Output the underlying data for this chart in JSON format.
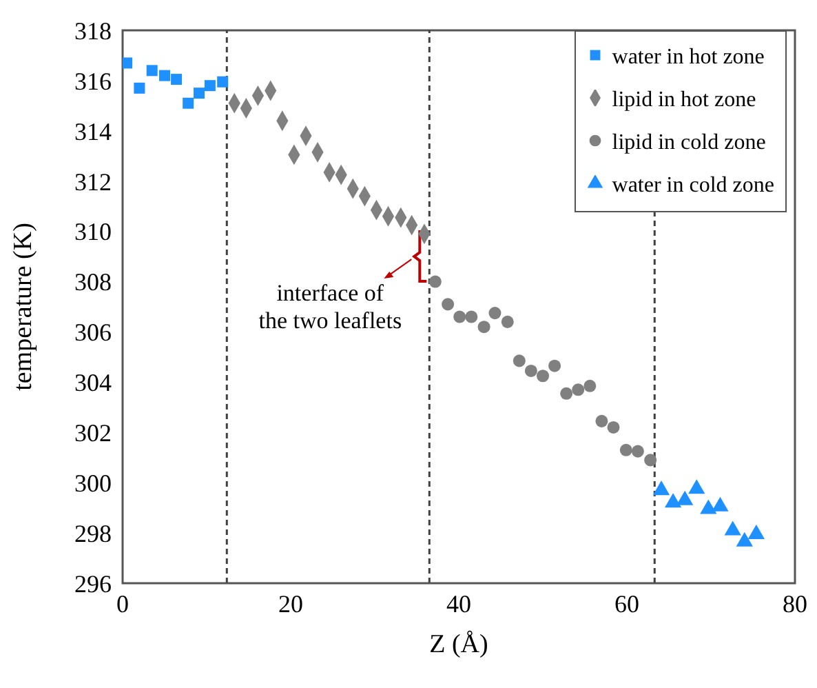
{
  "chart_data": {
    "type": "scatter",
    "xlabel": "Z (Å)",
    "ylabel": "temperature (K)",
    "xlim": [
      0,
      80
    ],
    "xticks": [
      0,
      20,
      40,
      60,
      80
    ],
    "ylim": [
      296,
      318
    ],
    "yticks": [
      296,
      298,
      300,
      302,
      304,
      306,
      308,
      310,
      312,
      314,
      316,
      318
    ],
    "grid": false,
    "legend": "top right",
    "series": [
      {
        "name": "water in hot zone",
        "color": "#1e90ff",
        "marker": "square",
        "x": [
          0.5,
          2,
          3.5,
          5,
          6.4,
          7.8,
          9.1,
          10.4,
          11.9
        ],
        "values": [
          316.7,
          315.7,
          316.4,
          316.2,
          316.05,
          315.1,
          315.5,
          315.8,
          315.95
        ]
      },
      {
        "name": "lipid in hot zone",
        "color": "#808080",
        "marker": "diamond",
        "x": [
          13.3,
          14.7,
          16.1,
          17.6,
          19.0,
          20.4,
          21.8,
          23.2,
          24.6,
          26.0,
          27.4,
          28.8,
          30.2,
          31.6,
          33.1,
          34.4,
          35.9
        ],
        "values": [
          315.1,
          314.9,
          315.4,
          315.6,
          314.4,
          313.05,
          313.8,
          313.15,
          312.35,
          312.25,
          311.7,
          311.4,
          310.85,
          310.6,
          310.55,
          310.25,
          309.9
        ]
      },
      {
        "name": "lipid in cold zone",
        "color": "#808080",
        "marker": "circle",
        "x": [
          37.2,
          38.7,
          40.1,
          41.5,
          43.0,
          44.3,
          45.8,
          47.2,
          48.6,
          50.0,
          51.4,
          52.8,
          54.2,
          55.6,
          57.0,
          58.4,
          59.9,
          61.3,
          62.8
        ],
        "values": [
          308.0,
          307.1,
          306.6,
          306.6,
          306.2,
          306.75,
          306.4,
          304.85,
          304.45,
          304.25,
          304.65,
          303.55,
          303.7,
          303.85,
          302.45,
          302.2,
          301.3,
          301.25,
          300.9
        ]
      },
      {
        "name": "water in cold zone",
        "color": "#1e90ff",
        "marker": "triangle",
        "x": [
          64.1,
          65.5,
          66.9,
          68.3,
          69.7,
          71.1,
          72.6,
          74.0,
          75.4
        ],
        "values": [
          299.7,
          299.2,
          299.3,
          299.75,
          298.95,
          299.05,
          298.1,
          297.65,
          297.95
        ]
      }
    ],
    "ref_lines": [
      {
        "axis": "x",
        "value": 12.4,
        "line_style": "dashed",
        "color": "#404040"
      },
      {
        "axis": "x",
        "value": 36.5,
        "line_style": "dashed",
        "color": "#404040"
      },
      {
        "axis": "x",
        "value": 63.3,
        "line_style": "dashed",
        "color": "#404040"
      }
    ],
    "annotations": [
      {
        "text": "interface of\nthe two leaflets",
        "x": 36.5,
        "y": 309
      }
    ]
  }
}
